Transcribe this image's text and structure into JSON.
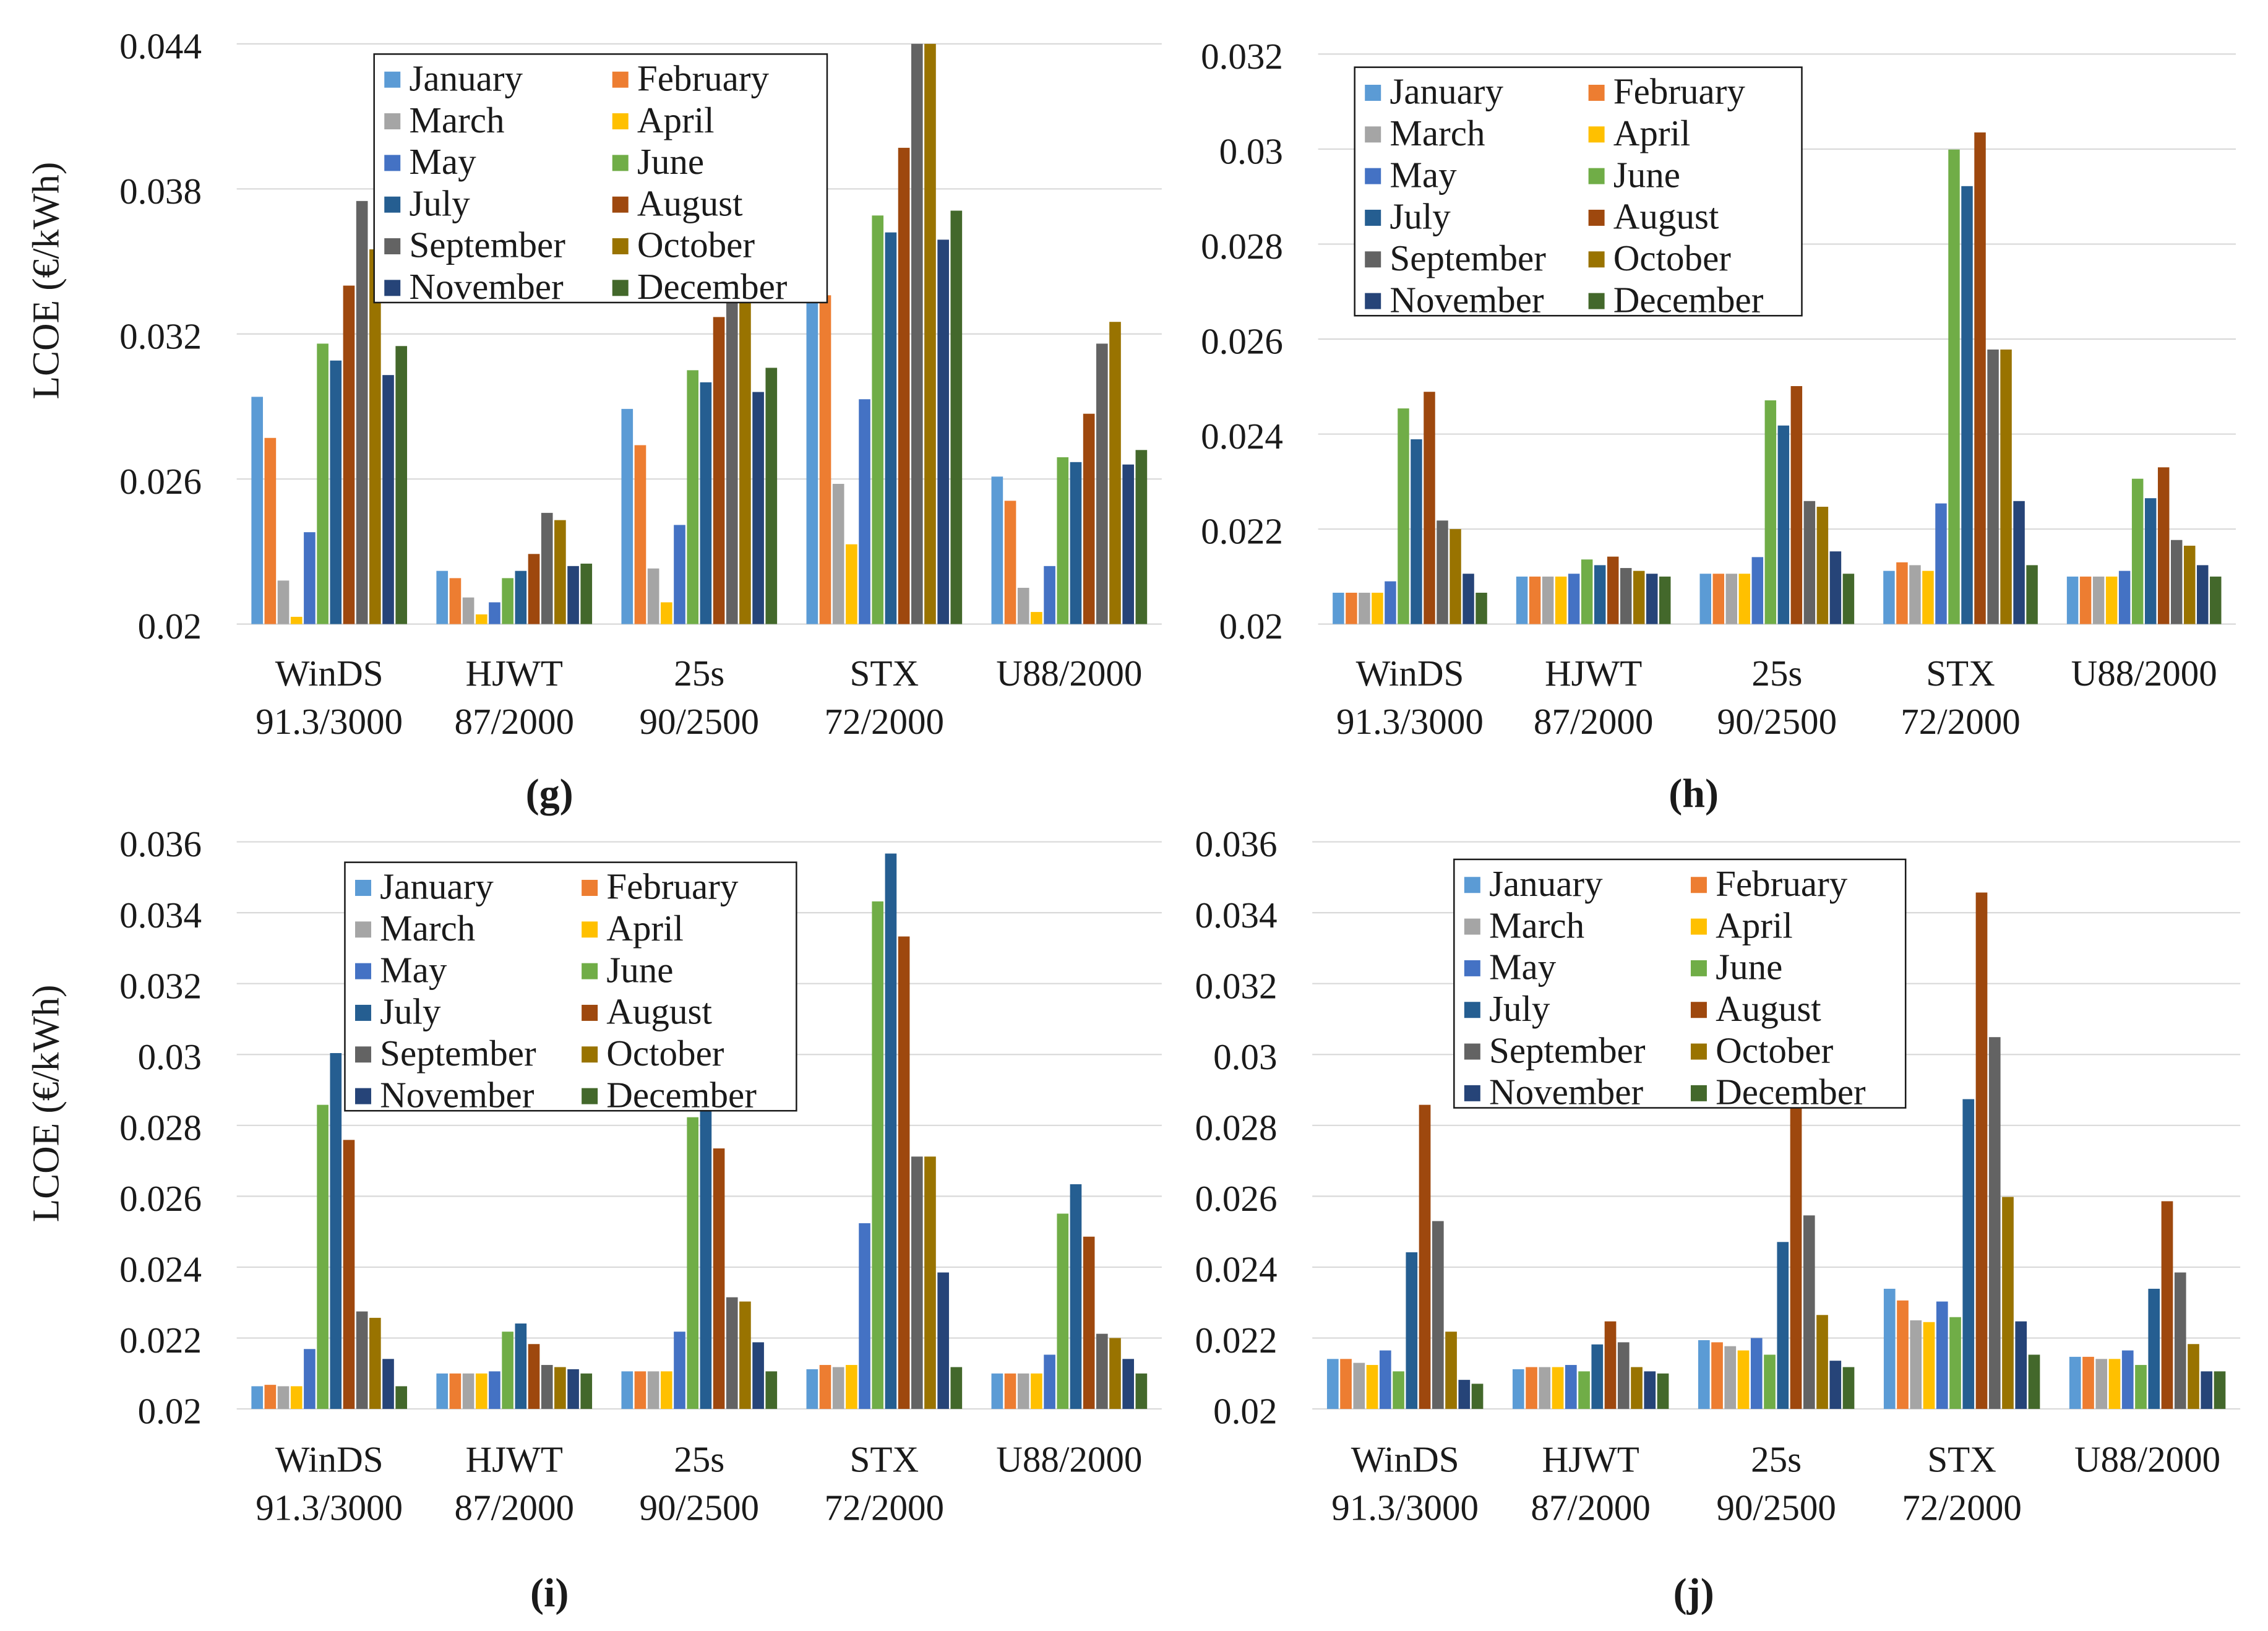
{
  "figure": {
    "panel_labels": [
      "(g)",
      "(h)",
      "(i)",
      "(j)"
    ]
  },
  "legend_order": [
    "January",
    "March",
    "May",
    "July",
    "September",
    "November",
    "February",
    "April",
    "June",
    "August",
    "October",
    "December"
  ],
  "chart_data": [
    {
      "panel": "(g)",
      "type": "bar",
      "title": "",
      "xlabel": "",
      "ylabel": "LCOE (€/kWh)",
      "ylim": [
        0.02,
        0.044
      ],
      "yticks": [
        0.02,
        0.026,
        0.032,
        0.038,
        0.044
      ],
      "ytick_labels": [
        "0.02",
        "0.026",
        "0.032",
        "0.038",
        "0.044"
      ],
      "grid": true,
      "legend": "top-center",
      "categories": [
        "WinDS\n91.3/3000",
        "HJWT\n87/2000",
        "25s\n90/2500",
        "STX\n72/2000",
        "U88/2000"
      ],
      "series": [
        {
          "name": "January",
          "color": "#5B9BD5",
          "values": [
            0.0294,
            0.0222,
            0.0289,
            0.0334,
            0.0261
          ]
        },
        {
          "name": "February",
          "color": "#ED7D31",
          "values": [
            0.0277,
            0.0219,
            0.0274,
            0.0336,
            0.0251
          ]
        },
        {
          "name": "March",
          "color": "#A5A5A5",
          "values": [
            0.0218,
            0.0211,
            0.0223,
            0.0258,
            0.0215
          ]
        },
        {
          "name": "April",
          "color": "#FFC000",
          "values": [
            0.0203,
            0.0204,
            0.0209,
            0.0233,
            0.0205
          ]
        },
        {
          "name": "May",
          "color": "#4472C4",
          "values": [
            0.0238,
            0.0209,
            0.0241,
            0.0293,
            0.0224
          ]
        },
        {
          "name": "June",
          "color": "#70AD47",
          "values": [
            0.0316,
            0.0219,
            0.0305,
            0.0369,
            0.0269
          ]
        },
        {
          "name": "July",
          "color": "#255E91",
          "values": [
            0.0309,
            0.0222,
            0.03,
            0.0362,
            0.0267
          ]
        },
        {
          "name": "August",
          "color": "#9E480E",
          "values": [
            0.034,
            0.0229,
            0.0327,
            0.0397,
            0.0287
          ]
        },
        {
          "name": "September",
          "color": "#636363",
          "values": [
            0.0375,
            0.0246,
            0.0343,
            0.044,
            0.0316
          ]
        },
        {
          "name": "October",
          "color": "#997300",
          "values": [
            0.0355,
            0.0243,
            0.0345,
            0.044,
            0.0325
          ]
        },
        {
          "name": "November",
          "color": "#264478",
          "values": [
            0.0303,
            0.0224,
            0.0296,
            0.0359,
            0.0266
          ]
        },
        {
          "name": "December",
          "color": "#43682B",
          "values": [
            0.0315,
            0.0225,
            0.0306,
            0.0371,
            0.0272
          ]
        }
      ]
    },
    {
      "panel": "(h)",
      "type": "bar",
      "title": "",
      "xlabel": "",
      "ylabel": "",
      "ylim": [
        0.02,
        0.032
      ],
      "yticks": [
        0.02,
        0.022,
        0.024,
        0.026,
        0.028,
        0.03,
        0.032
      ],
      "ytick_labels": [
        "0.02",
        "0.022",
        "0.024",
        "0.026",
        "0.028",
        "0.03",
        "0.032"
      ],
      "grid": true,
      "legend": "top-left",
      "categories": [
        "WinDS\n91.3/3000",
        "HJWT\n87/2000",
        "25s\n90/2500",
        "STX\n72/2000",
        "U88/2000"
      ],
      "series": [
        {
          "name": "January",
          "color": "#5B9BD5",
          "values": [
            0.02066,
            0.021,
            0.02106,
            0.02112,
            0.021
          ]
        },
        {
          "name": "February",
          "color": "#ED7D31",
          "values": [
            0.02066,
            0.021,
            0.02106,
            0.0213,
            0.021
          ]
        },
        {
          "name": "March",
          "color": "#A5A5A5",
          "values": [
            0.02066,
            0.021,
            0.02106,
            0.02124,
            0.021
          ]
        },
        {
          "name": "April",
          "color": "#FFC000",
          "values": [
            0.02066,
            0.021,
            0.02106,
            0.02112,
            0.021
          ]
        },
        {
          "name": "May",
          "color": "#4472C4",
          "values": [
            0.0209,
            0.02106,
            0.02141,
            0.02254,
            0.02112
          ]
        },
        {
          "name": "June",
          "color": "#70AD47",
          "values": [
            0.02454,
            0.02136,
            0.02471,
            0.02999,
            0.02306
          ]
        },
        {
          "name": "July",
          "color": "#255E91",
          "values": [
            0.02389,
            0.02124,
            0.02418,
            0.02922,
            0.02265
          ]
        },
        {
          "name": "August",
          "color": "#9E480E",
          "values": [
            0.02489,
            0.02142,
            0.02501,
            0.03035,
            0.0233
          ]
        },
        {
          "name": "September",
          "color": "#636363",
          "values": [
            0.02218,
            0.02118,
            0.02259,
            0.02578,
            0.02177
          ]
        },
        {
          "name": "October",
          "color": "#997300",
          "values": [
            0.022,
            0.02112,
            0.02247,
            0.02578,
            0.02165
          ]
        },
        {
          "name": "November",
          "color": "#264478",
          "values": [
            0.02106,
            0.02106,
            0.02153,
            0.02259,
            0.02124
          ]
        },
        {
          "name": "December",
          "color": "#43682B",
          "values": [
            0.02066,
            0.021,
            0.02106,
            0.02124,
            0.021
          ]
        }
      ]
    },
    {
      "panel": "(i)",
      "type": "bar",
      "title": "",
      "xlabel": "",
      "ylabel": "LCOE (€/kWh)",
      "ylim": [
        0.02,
        0.036
      ],
      "yticks": [
        0.02,
        0.022,
        0.024,
        0.026,
        0.028,
        0.03,
        0.032,
        0.034,
        0.036
      ],
      "ytick_labels": [
        "0.02",
        "0.022",
        "0.024",
        "0.026",
        "0.028",
        "0.03",
        "0.032",
        "0.034",
        "0.036"
      ],
      "grid": true,
      "legend": "top-center",
      "categories": [
        "WinDS\n91.3/3000",
        "HJWT\n87/2000",
        "25s\n90/2500",
        "STX\n72/2000",
        "U88/2000"
      ],
      "series": [
        {
          "name": "January",
          "color": "#5B9BD5",
          "values": [
            0.02064,
            0.021,
            0.02106,
            0.02112,
            0.021
          ]
        },
        {
          "name": "February",
          "color": "#ED7D31",
          "values": [
            0.02068,
            0.021,
            0.02106,
            0.02124,
            0.021
          ]
        },
        {
          "name": "March",
          "color": "#A5A5A5",
          "values": [
            0.02064,
            0.021,
            0.02106,
            0.02118,
            0.021
          ]
        },
        {
          "name": "April",
          "color": "#FFC000",
          "values": [
            0.02064,
            0.021,
            0.02106,
            0.02124,
            0.021
          ]
        },
        {
          "name": "May",
          "color": "#4472C4",
          "values": [
            0.02169,
            0.02106,
            0.02218,
            0.02524,
            0.02153
          ]
        },
        {
          "name": "June",
          "color": "#70AD47",
          "values": [
            0.02858,
            0.02218,
            0.02823,
            0.03432,
            0.02551
          ]
        },
        {
          "name": "July",
          "color": "#255E91",
          "values": [
            0.03004,
            0.02241,
            0.02903,
            0.03567,
            0.02634
          ]
        },
        {
          "name": "August",
          "color": "#9E480E",
          "values": [
            0.02759,
            0.02183,
            0.02735,
            0.03333,
            0.02486
          ]
        },
        {
          "name": "September",
          "color": "#636363",
          "values": [
            0.02275,
            0.02124,
            0.02315,
            0.02712,
            0.02212
          ]
        },
        {
          "name": "October",
          "color": "#997300",
          "values": [
            0.02257,
            0.02118,
            0.02303,
            0.02712,
            0.022
          ]
        },
        {
          "name": "November",
          "color": "#264478",
          "values": [
            0.02141,
            0.02112,
            0.02188,
            0.02385,
            0.02141
          ]
        },
        {
          "name": "December",
          "color": "#43682B",
          "values": [
            0.02064,
            0.021,
            0.02106,
            0.02118,
            0.021
          ]
        }
      ]
    },
    {
      "panel": "(j)",
      "type": "bar",
      "title": "",
      "xlabel": "",
      "ylabel": "",
      "ylim": [
        0.02,
        0.036
      ],
      "yticks": [
        0.02,
        0.022,
        0.024,
        0.026,
        0.028,
        0.03,
        0.032,
        0.034,
        0.036
      ],
      "ytick_labels": [
        "0.02",
        "0.022",
        "0.024",
        "0.026",
        "0.028",
        "0.03",
        "0.032",
        "0.034",
        "0.036"
      ],
      "grid": true,
      "legend": "top-center",
      "categories": [
        "WinDS\n91.3/3000",
        "HJWT\n87/2000",
        "25s\n90/2500",
        "STX\n72/2000",
        "U88/2000"
      ],
      "series": [
        {
          "name": "January",
          "color": "#5B9BD5",
          "values": [
            0.02141,
            0.02112,
            0.02194,
            0.02339,
            0.02147
          ]
        },
        {
          "name": "February",
          "color": "#ED7D31",
          "values": [
            0.02141,
            0.02118,
            0.02188,
            0.02306,
            0.02147
          ]
        },
        {
          "name": "March",
          "color": "#A5A5A5",
          "values": [
            0.0213,
            0.02118,
            0.02177,
            0.0225,
            0.02141
          ]
        },
        {
          "name": "April",
          "color": "#FFC000",
          "values": [
            0.02124,
            0.02118,
            0.02165,
            0.02245,
            0.02141
          ]
        },
        {
          "name": "May",
          "color": "#4472C4",
          "values": [
            0.02165,
            0.02124,
            0.022,
            0.02303,
            0.02165
          ]
        },
        {
          "name": "June",
          "color": "#70AD47",
          "values": [
            0.02106,
            0.02106,
            0.02153,
            0.02259,
            0.02124
          ]
        },
        {
          "name": "July",
          "color": "#255E91",
          "values": [
            0.02442,
            0.02182,
            0.02471,
            0.02874,
            0.02339
          ]
        },
        {
          "name": "August",
          "color": "#9E480E",
          "values": [
            0.02858,
            0.02247,
            0.02898,
            0.03457,
            0.02586
          ]
        },
        {
          "name": "September",
          "color": "#636363",
          "values": [
            0.0253,
            0.02188,
            0.02546,
            0.03049,
            0.02385
          ]
        },
        {
          "name": "October",
          "color": "#997300",
          "values": [
            0.02218,
            0.02118,
            0.02265,
            0.02598,
            0.02183
          ]
        },
        {
          "name": "November",
          "color": "#264478",
          "values": [
            0.02082,
            0.02106,
            0.02136,
            0.02247,
            0.02106
          ]
        },
        {
          "name": "December",
          "color": "#43682B",
          "values": [
            0.02071,
            0.021,
            0.02118,
            0.02153,
            0.02106
          ]
        }
      ]
    }
  ]
}
